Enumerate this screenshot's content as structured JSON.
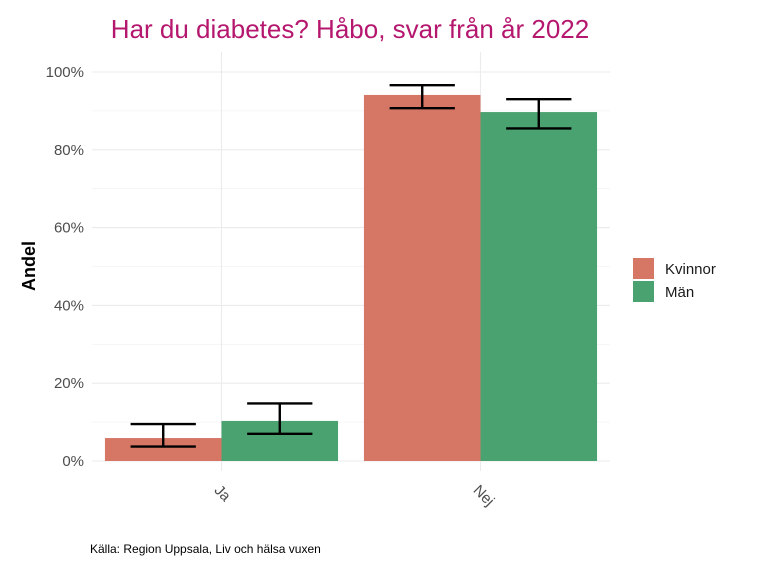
{
  "chart_data": {
    "type": "bar",
    "title": "Har du diabetes? Håbo, svar från år 2022",
    "xlabel": "",
    "ylabel": "Andel",
    "categories": [
      "Ja",
      "Nej"
    ],
    "ylim": [
      0,
      100
    ],
    "yticks": [
      0,
      20,
      40,
      60,
      80,
      100
    ],
    "ytick_labels": [
      "0%",
      "20%",
      "40%",
      "60%",
      "80%",
      "100%"
    ],
    "grid": true,
    "legend_position": "right",
    "series": [
      {
        "name": "Kvinnor",
        "color": "#d67766",
        "values": [
          5.9,
          94.1
        ],
        "err_low": [
          3.7,
          90.7
        ],
        "err_high": [
          9.5,
          96.6
        ]
      },
      {
        "name": "Män",
        "color": "#4aa271",
        "values": [
          10.3,
          89.7
        ],
        "err_low": [
          7.0,
          85.5
        ],
        "err_high": [
          14.8,
          93.0
        ]
      }
    ],
    "caption": "Källa: Region Uppsala, Liv och hälsa vuxen"
  }
}
